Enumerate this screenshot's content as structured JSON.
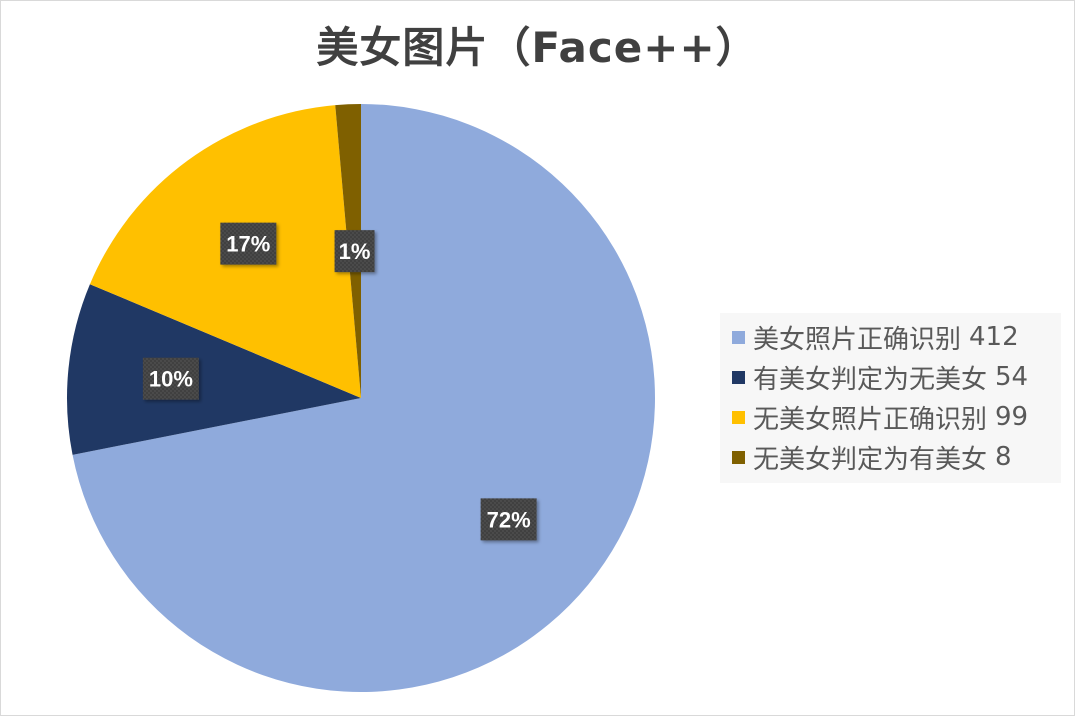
{
  "chart_data": {
    "type": "pie",
    "title": "美女图片（Face++）",
    "legend_position": "right",
    "slices": [
      {
        "label": "美女照片正确识别",
        "value": 412,
        "percent_label": "72%",
        "color": "#8faadc"
      },
      {
        "label": "有美女判定为无美女",
        "value": 54,
        "percent_label": "10%",
        "color": "#203864"
      },
      {
        "label": "无美女照片正确识别",
        "value": 99,
        "percent_label": "17%",
        "color": "#ffc000"
      },
      {
        "label": "无美女判定为有美女",
        "value": 8,
        "percent_label": "1%",
        "color": "#7f6000"
      }
    ]
  }
}
